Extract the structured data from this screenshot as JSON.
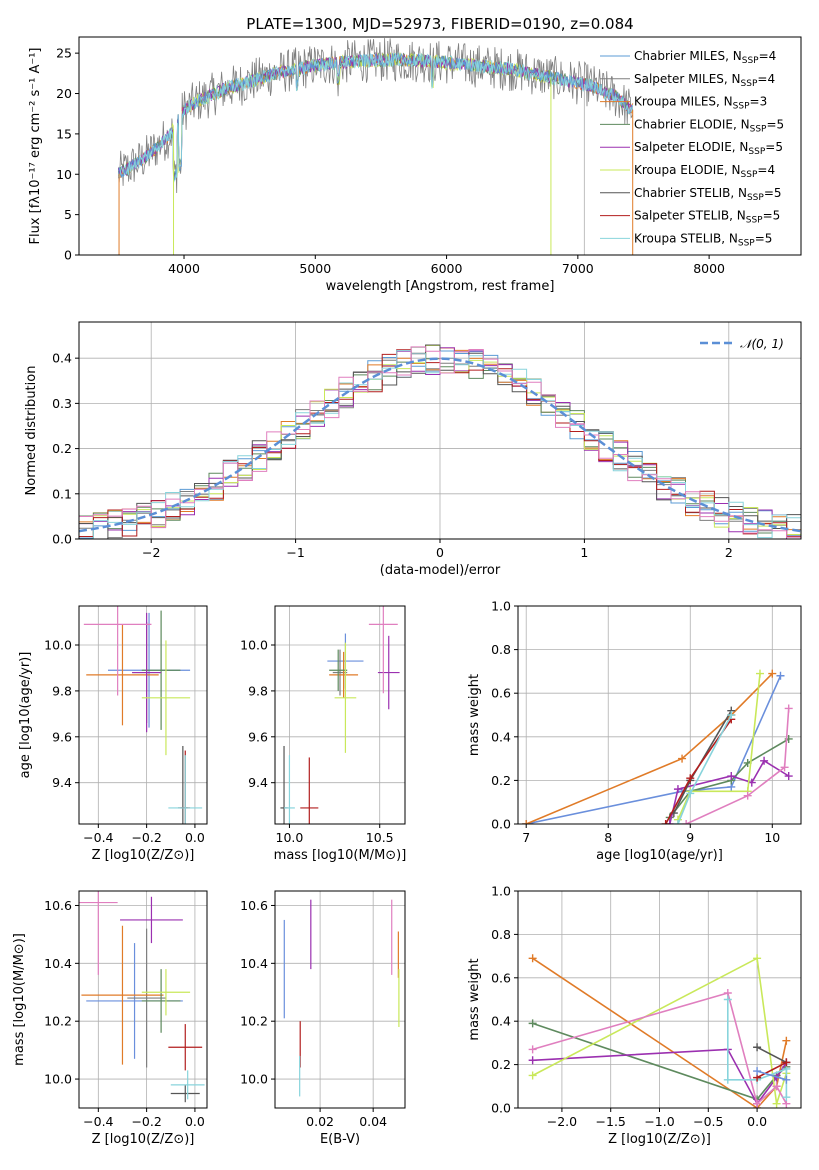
{
  "title": "PLATE=1300, MJD=52973, FIBERID=0190, z=0.084",
  "colors": {
    "chabrier_miles": "#5b9bd5",
    "salpeter_miles": "#7f7f7f",
    "kroupa_miles": "#e07b28",
    "chabrier_elodie": "#5e8a5e",
    "salpeter_elodie": "#9b30b0",
    "kroupa_elodie": "#c9e85a",
    "chabrier_stelib": "#555555",
    "salpeter_stelib": "#b21e1e",
    "kroupa_stelib": "#88d4dc",
    "gauss": "#5b8fd6",
    "sed_pink": "#e07fbf",
    "sed_blue": "#6a8fdc"
  },
  "chart_data": [
    {
      "id": "spectrum",
      "type": "line",
      "xlabel": "wavelength [Angstrom, rest frame]",
      "ylabel": "Flux [fλ10⁻¹⁷ erg cm⁻² s⁻¹ A⁻¹]",
      "xlim": [
        3200,
        8700
      ],
      "ylim": [
        0,
        27
      ],
      "xticks": [
        4000,
        5000,
        6000,
        7000,
        8000
      ],
      "yticks": [
        0,
        5,
        10,
        15,
        20,
        25
      ],
      "legend_position": "top-right",
      "legend": [
        {
          "name": "Chabrier MILES, N",
          "sub": "SSP",
          "val": "=4",
          "color": "#5b9bd5"
        },
        {
          "name": "Salpeter MILES, N",
          "sub": "SSP",
          "val": "=4",
          "color": "#7f7f7f"
        },
        {
          "name": "Kroupa MILES, N",
          "sub": "SSP",
          "val": "=3",
          "color": "#e07b28"
        },
        {
          "name": "Chabrier ELODIE, N",
          "sub": "SSP",
          "val": "=5",
          "color": "#5e8a5e"
        },
        {
          "name": "Salpeter ELODIE, N",
          "sub": "SSP",
          "val": "=5",
          "color": "#9b30b0"
        },
        {
          "name": "Kroupa ELODIE, N",
          "sub": "SSP",
          "val": "=4",
          "color": "#c9e85a"
        },
        {
          "name": "Chabrier STELIB, N",
          "sub": "SSP",
          "val": "=5",
          "color": "#555555"
        },
        {
          "name": "Salpeter STELIB, N",
          "sub": "SSP",
          "val": "=5",
          "color": "#b21e1e"
        },
        {
          "name": "Kroupa STELIB, N",
          "sub": "SSP",
          "val": "=5",
          "color": "#88d4dc"
        }
      ],
      "continuum": {
        "x": [
          3500,
          3700,
          3900,
          4000,
          4100,
          4300,
          4500,
          4700,
          5000,
          5300,
          5600,
          5900,
          6200,
          6500,
          6800,
          7100,
          7300,
          7400
        ],
        "y": [
          10,
          12,
          15,
          18,
          19,
          20.5,
          21.5,
          22.5,
          23.5,
          24,
          24.2,
          24,
          23.5,
          23,
          22,
          21,
          19.5,
          18
        ]
      },
      "spectrum_range": [
        3500,
        7420
      ],
      "miles_range": [
        3500,
        7420
      ],
      "elodie_range": [
        3900,
        6800
      ],
      "stelib_range": [
        3500,
        8200
      ]
    },
    {
      "id": "residuals",
      "type": "step",
      "xlabel": "(data-model)/error",
      "ylabel": "Normed distribution",
      "xlim": [
        -2.5,
        2.5
      ],
      "ylim": [
        0,
        0.48
      ],
      "xticks": [
        -2,
        -1,
        0,
        1,
        2
      ],
      "yticks": [
        0.0,
        0.1,
        0.2,
        0.3,
        0.4
      ],
      "legend_position": "top-right",
      "legend": [
        {
          "name": "𝒩(0, 1)",
          "color": "#5b8fd6"
        }
      ],
      "bin_width": 0.1
    },
    {
      "id": "age_vs_Z",
      "type": "scatter",
      "xlabel": "Z [log10(Z/Z⊙)]",
      "ylabel": "age  [log10(age/yr)]",
      "xlim": [
        -0.48,
        0.05
      ],
      "ylim": [
        9.22,
        10.17
      ],
      "xticks": [
        -0.4,
        -0.2,
        0.0
      ],
      "yticks": [
        9.4,
        9.6,
        9.8,
        10.0
      ],
      "points": [
        {
          "x": -0.19,
          "y": 9.89,
          "xerr": 0.17,
          "yerr": 0.25,
          "color": "#6a8fdc"
        },
        {
          "x": -0.2,
          "y": 9.88,
          "xerr": 0.06,
          "yerr": 0.22,
          "color": "#7f7f7f"
        },
        {
          "x": -0.3,
          "y": 9.87,
          "xerr": 0.15,
          "yerr": 0.22,
          "color": "#e07b28"
        },
        {
          "x": -0.14,
          "y": 9.89,
          "xerr": 0.08,
          "yerr": 0.26,
          "color": "#5e8a5e"
        },
        {
          "x": -0.2,
          "y": 9.88,
          "xerr": 0.06,
          "yerr": 0.26,
          "color": "#9b30b0"
        },
        {
          "x": -0.12,
          "y": 9.77,
          "xerr": 0.1,
          "yerr": 0.25,
          "color": "#c9e85a"
        },
        {
          "x": -0.05,
          "y": 9.29,
          "xerr": 0.02,
          "yerr": 0.27,
          "color": "#555555"
        },
        {
          "x": -0.04,
          "y": 9.29,
          "xerr": 0.02,
          "yerr": 0.25,
          "color": "#b21e1e"
        },
        {
          "x": -0.04,
          "y": 9.29,
          "xerr": 0.07,
          "yerr": 0.23,
          "color": "#88d4dc"
        },
        {
          "x": -0.32,
          "y": 10.09,
          "xerr": 0.14,
          "yerr": 0.31,
          "color": "#e07fbf"
        }
      ]
    },
    {
      "id": "age_vs_mass",
      "type": "scatter",
      "xlabel": "mass [log10(M/M⊙)]",
      "ylabel": "",
      "xlim": [
        9.92,
        10.64
      ],
      "ylim": [
        9.22,
        10.17
      ],
      "xticks": [
        10.0,
        10.5
      ],
      "yticks": [
        9.4,
        9.6,
        9.8,
        10.0
      ],
      "points": [
        {
          "x": 10.31,
          "y": 9.93,
          "xerr": 0.1,
          "yerr": 0.12,
          "color": "#6a8fdc"
        },
        {
          "x": 10.28,
          "y": 9.88,
          "xerr": 0.04,
          "yerr": 0.1,
          "color": "#7f7f7f"
        },
        {
          "x": 10.3,
          "y": 9.87,
          "xerr": 0.08,
          "yerr": 0.1,
          "color": "#e07b28"
        },
        {
          "x": 10.27,
          "y": 9.89,
          "xerr": 0.05,
          "yerr": 0.09,
          "color": "#5e8a5e"
        },
        {
          "x": 10.55,
          "y": 9.88,
          "xerr": 0.06,
          "yerr": 0.16,
          "color": "#9b30b0"
        },
        {
          "x": 10.31,
          "y": 9.77,
          "xerr": 0.06,
          "yerr": 0.24,
          "color": "#c9e85a"
        },
        {
          "x": 9.97,
          "y": 9.29,
          "xerr": 0.02,
          "yerr": 0.27,
          "color": "#555555"
        },
        {
          "x": 10.11,
          "y": 9.29,
          "xerr": 0.05,
          "yerr": 0.22,
          "color": "#b21e1e"
        },
        {
          "x": 10.0,
          "y": 9.29,
          "xerr": 0.03,
          "yerr": 0.23,
          "color": "#88d4dc"
        },
        {
          "x": 10.52,
          "y": 10.09,
          "xerr": 0.08,
          "yerr": 0.3,
          "color": "#e07fbf"
        }
      ]
    },
    {
      "id": "weight_vs_age",
      "type": "line",
      "xlabel": "age  [log10(age/yr)]",
      "ylabel": "mass weight",
      "xlim": [
        6.9,
        10.35
      ],
      "ylim": [
        0,
        1.0
      ],
      "xticks": [
        7,
        8,
        9,
        10
      ],
      "yticks": [
        0.0,
        0.2,
        0.4,
        0.6,
        0.8,
        1.0
      ],
      "series": [
        {
          "color": "#6a8fdc",
          "x": [
            7.0,
            8.9,
            9.5,
            10.1
          ],
          "y": [
            0.0,
            0.15,
            0.17,
            0.68
          ]
        },
        {
          "color": "#e07b28",
          "x": [
            7.0,
            8.9,
            9.5,
            10.0
          ],
          "y": [
            0.0,
            0.3,
            0.5,
            0.69
          ]
        },
        {
          "color": "#5e8a5e",
          "x": [
            8.75,
            9.0,
            9.5,
            9.7,
            10.2
          ],
          "y": [
            0.03,
            0.15,
            0.2,
            0.28,
            0.39
          ]
        },
        {
          "color": "#9b30b0",
          "x": [
            8.75,
            8.85,
            9.5,
            9.75,
            9.9,
            10.2
          ],
          "y": [
            0.0,
            0.16,
            0.22,
            0.19,
            0.29,
            0.22
          ]
        },
        {
          "color": "#c9e85a",
          "x": [
            8.85,
            9.0,
            9.7,
            9.85
          ],
          "y": [
            0.02,
            0.15,
            0.15,
            0.69
          ]
        },
        {
          "color": "#555555",
          "x": [
            8.8,
            9.0,
            9.5
          ],
          "y": [
            0.05,
            0.2,
            0.52
          ]
        },
        {
          "color": "#b21e1e",
          "x": [
            8.7,
            9.0,
            9.5
          ],
          "y": [
            0.0,
            0.21,
            0.48
          ]
        },
        {
          "color": "#88d4dc",
          "x": [
            8.85,
            9.0,
            9.5
          ],
          "y": [
            0.0,
            0.14,
            0.5
          ]
        },
        {
          "color": "#e07fbf",
          "x": [
            8.95,
            9.7,
            10.15,
            10.2
          ],
          "y": [
            0.0,
            0.13,
            0.26,
            0.53
          ]
        }
      ]
    },
    {
      "id": "mass_vs_Z",
      "type": "scatter",
      "xlabel": "Z [log10(Z/Z⊙)]",
      "ylabel": "mass [log10(M/M⊙)]",
      "xlim": [
        -0.48,
        0.05
      ],
      "ylim": [
        9.9,
        10.65
      ],
      "xticks": [
        -0.4,
        -0.2,
        0.0
      ],
      "yticks": [
        10.0,
        10.2,
        10.4,
        10.6
      ],
      "points": [
        {
          "x": -0.25,
          "y": 10.27,
          "xerr": 0.2,
          "yerr": 0.2,
          "color": "#6a8fdc"
        },
        {
          "x": -0.2,
          "y": 10.28,
          "xerr": 0.08,
          "yerr": 0.24,
          "color": "#7f7f7f"
        },
        {
          "x": -0.3,
          "y": 10.29,
          "xerr": 0.17,
          "yerr": 0.24,
          "color": "#e07b28"
        },
        {
          "x": -0.14,
          "y": 10.27,
          "xerr": 0.08,
          "yerr": 0.11,
          "color": "#5e8a5e"
        },
        {
          "x": -0.18,
          "y": 10.55,
          "xerr": 0.13,
          "yerr": 0.08,
          "color": "#9b30b0"
        },
        {
          "x": -0.12,
          "y": 10.3,
          "xerr": 0.1,
          "yerr": 0.08,
          "color": "#c9e85a"
        },
        {
          "x": -0.04,
          "y": 9.95,
          "xerr": 0.06,
          "yerr": 0.03,
          "color": "#555555"
        },
        {
          "x": -0.04,
          "y": 10.11,
          "xerr": 0.07,
          "yerr": 0.08,
          "color": "#b21e1e"
        },
        {
          "x": -0.03,
          "y": 9.98,
          "xerr": 0.07,
          "yerr": 0.05,
          "color": "#88d4dc"
        },
        {
          "x": -0.4,
          "y": 10.61,
          "xerr": 0.08,
          "yerr": 0.25,
          "color": "#e07fbf"
        }
      ]
    },
    {
      "id": "mass_vs_ebv",
      "type": "scatter",
      "xlabel": "E(B-V)",
      "ylabel": "",
      "xlim": [
        0.003,
        0.052
      ],
      "ylim": [
        9.9,
        10.65
      ],
      "xticks": [
        0.02,
        0.04
      ],
      "yticks": [
        10.0,
        10.2,
        10.4,
        10.6
      ],
      "points": [
        {
          "x": 0.0065,
          "y": 10.38,
          "yerr": 0.17,
          "color": "#6a8fdc"
        },
        {
          "x": 0.0165,
          "y": 10.5,
          "yerr": 0.12,
          "color": "#9b30b0"
        },
        {
          "x": 0.0125,
          "y": 10.12,
          "yerr": 0.08,
          "color": "#b21e1e"
        },
        {
          "x": 0.0123,
          "y": 10.01,
          "yerr": 0.07,
          "color": "#88d4dc"
        },
        {
          "x": 0.047,
          "y": 10.49,
          "yerr": 0.13,
          "color": "#e07fbf"
        },
        {
          "x": 0.0495,
          "y": 10.43,
          "yerr": 0.08,
          "color": "#e07b28"
        },
        {
          "x": 0.0497,
          "y": 10.28,
          "yerr": 0.1,
          "color": "#c9e85a"
        }
      ]
    },
    {
      "id": "weight_vs_Z",
      "type": "line",
      "xlabel": "Z [log10(Z/Z⊙)]",
      "ylabel": "mass weight",
      "xlim": [
        -2.45,
        0.45
      ],
      "ylim": [
        0,
        1.0
      ],
      "xticks": [
        -2.0,
        -1.5,
        -1.0,
        -0.5,
        0.0
      ],
      "yticks": [
        0.0,
        0.2,
        0.4,
        0.6,
        0.8,
        1.0
      ],
      "series": [
        {
          "color": "#e07b28",
          "x": [
            -2.3,
            0.0,
            0.2,
            0.3
          ],
          "y": [
            0.69,
            0.0,
            0.1,
            0.31
          ]
        },
        {
          "color": "#5e8a5e",
          "x": [
            -2.3,
            0.0,
            0.2,
            0.3
          ],
          "y": [
            0.39,
            0.04,
            0.15,
            0.19
          ]
        },
        {
          "color": "#9b30b0",
          "x": [
            -2.3,
            -0.3,
            0.0,
            0.2,
            0.3
          ],
          "y": [
            0.22,
            0.27,
            0.02,
            0.14,
            0.21
          ]
        },
        {
          "color": "#c9e85a",
          "x": [
            -2.3,
            0.0,
            0.2,
            0.3
          ],
          "y": [
            0.15,
            0.69,
            0.02,
            0.16
          ]
        },
        {
          "color": "#e07fbf",
          "x": [
            -2.3,
            -0.3,
            0.0,
            0.2,
            0.3
          ],
          "y": [
            0.27,
            0.53,
            0.02,
            0.1,
            0.02
          ]
        },
        {
          "color": "#88d4dc",
          "x": [
            -0.3,
            -0.3,
            0.0,
            0.3,
            0.3
          ],
          "y": [
            0.5,
            0.13,
            0.13,
            0.18,
            0.05
          ]
        },
        {
          "color": "#555555",
          "x": [
            0.0,
            0.3
          ],
          "y": [
            0.28,
            0.21
          ]
        },
        {
          "color": "#b21e1e",
          "x": [
            0.0,
            0.3
          ],
          "y": [
            0.14,
            0.21
          ]
        },
        {
          "color": "#6a8fdc",
          "x": [
            0.0,
            0.3
          ],
          "y": [
            0.17,
            0.13
          ]
        }
      ]
    }
  ]
}
